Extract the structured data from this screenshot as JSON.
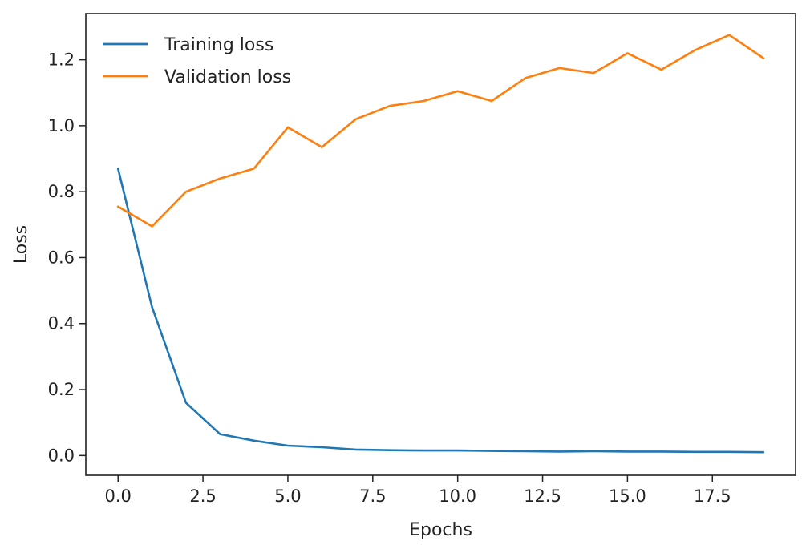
{
  "chart_data": {
    "type": "line",
    "title": "",
    "xlabel": "Epochs",
    "ylabel": "Loss",
    "xlim": [
      -0.95,
      19.95
    ],
    "ylim": [
      -0.06,
      1.34
    ],
    "x_ticks": [
      0.0,
      2.5,
      5.0,
      7.5,
      10.0,
      12.5,
      15.0,
      17.5
    ],
    "x_tick_labels": [
      "0.0",
      "2.5",
      "5.0",
      "7.5",
      "10.0",
      "12.5",
      "15.0",
      "17.5"
    ],
    "y_ticks": [
      0.0,
      0.2,
      0.4,
      0.6,
      0.8,
      1.0,
      1.2
    ],
    "y_tick_labels": [
      "0.0",
      "0.2",
      "0.4",
      "0.6",
      "0.8",
      "1.0",
      "1.2"
    ],
    "grid": false,
    "legend_position": "top-left",
    "x": [
      0,
      1,
      2,
      3,
      4,
      5,
      6,
      7,
      8,
      9,
      10,
      11,
      12,
      13,
      14,
      15,
      16,
      17,
      18,
      19
    ],
    "series": [
      {
        "name": "Training loss",
        "color": "#1f77b4",
        "values": [
          0.87,
          0.45,
          0.16,
          0.065,
          0.045,
          0.03,
          0.025,
          0.018,
          0.016,
          0.015,
          0.015,
          0.014,
          0.013,
          0.012,
          0.013,
          0.012,
          0.012,
          0.011,
          0.011,
          0.01
        ]
      },
      {
        "name": "Validation loss",
        "color": "#ff7f0e",
        "values": [
          0.755,
          0.695,
          0.8,
          0.84,
          0.87,
          0.995,
          0.935,
          1.02,
          1.06,
          1.075,
          1.105,
          1.075,
          1.145,
          1.175,
          1.16,
          1.22,
          1.17,
          1.23,
          1.275,
          1.205
        ]
      }
    ]
  }
}
